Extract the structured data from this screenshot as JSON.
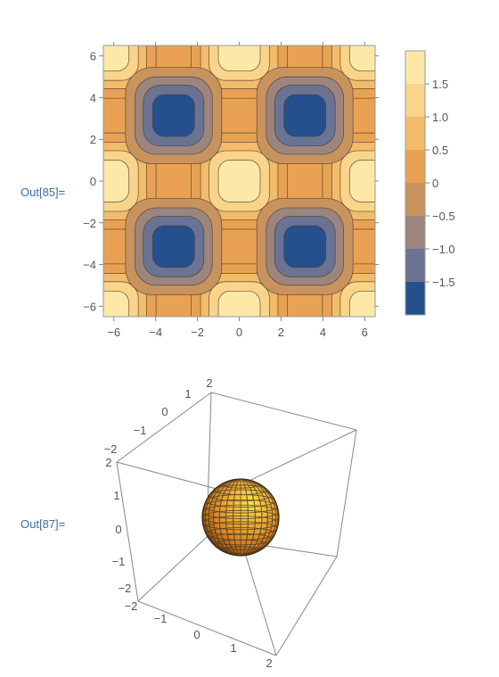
{
  "outputs": [
    {
      "label": "Out[85]="
    },
    {
      "label": "Out[87]="
    }
  ],
  "chart_data": [
    {
      "type": "heatmap",
      "title": "",
      "xlabel": "",
      "ylabel": "",
      "xlim": [
        -6.5,
        6.5
      ],
      "ylim": [
        -6.5,
        6.5
      ],
      "x_ticks": [
        "−6",
        "−4",
        "−2",
        "0",
        "2",
        "4",
        "6"
      ],
      "y_ticks": [
        "6",
        "4",
        "2",
        "0",
        "−2",
        "−4",
        "−6"
      ],
      "contour_levels": [
        -1.5,
        -1.0,
        -0.5,
        0,
        0.5,
        1.0,
        1.5
      ],
      "legend_ticks": [
        "1.5",
        "1.0",
        "0.5",
        "0",
        "−0.5",
        "−1.0",
        "−1.5"
      ],
      "legend_colors": [
        "#fee8a8",
        "#f9d48a",
        "#f2bc6b",
        "#e9a253",
        "#c8935e",
        "#9c857c",
        "#6b7394",
        "#24508e"
      ],
      "maxima": [
        [
          0,
          0
        ],
        [
          6.28,
          6.28
        ],
        [
          -6.28,
          6.28
        ],
        [
          6.28,
          -6.28
        ],
        [
          -6.28,
          -6.28
        ],
        [
          0,
          6.28
        ],
        [
          0,
          -6.28
        ],
        [
          6.28,
          0
        ],
        [
          -6.28,
          0
        ]
      ],
      "minima": [
        [
          3.14,
          3.14
        ],
        [
          -3.14,
          3.14
        ],
        [
          3.14,
          -3.14
        ],
        [
          -3.14,
          -3.14
        ]
      ]
    },
    {
      "type": "3d-surface",
      "shape": "sphere",
      "axis_range": [
        -2,
        2
      ],
      "axis_x_ticks": [
        "−2",
        "−1",
        "0",
        "1",
        "2"
      ],
      "axis_y_ticks": [
        "−2",
        "−1",
        "0",
        "1",
        "2"
      ],
      "axis_z_ticks": [
        "2",
        "1",
        "0",
        "−1",
        "−2"
      ],
      "colors": {
        "surface": "#f4a73b",
        "highlight": "#f7e14a",
        "mesh": "#3a3020"
      }
    }
  ]
}
